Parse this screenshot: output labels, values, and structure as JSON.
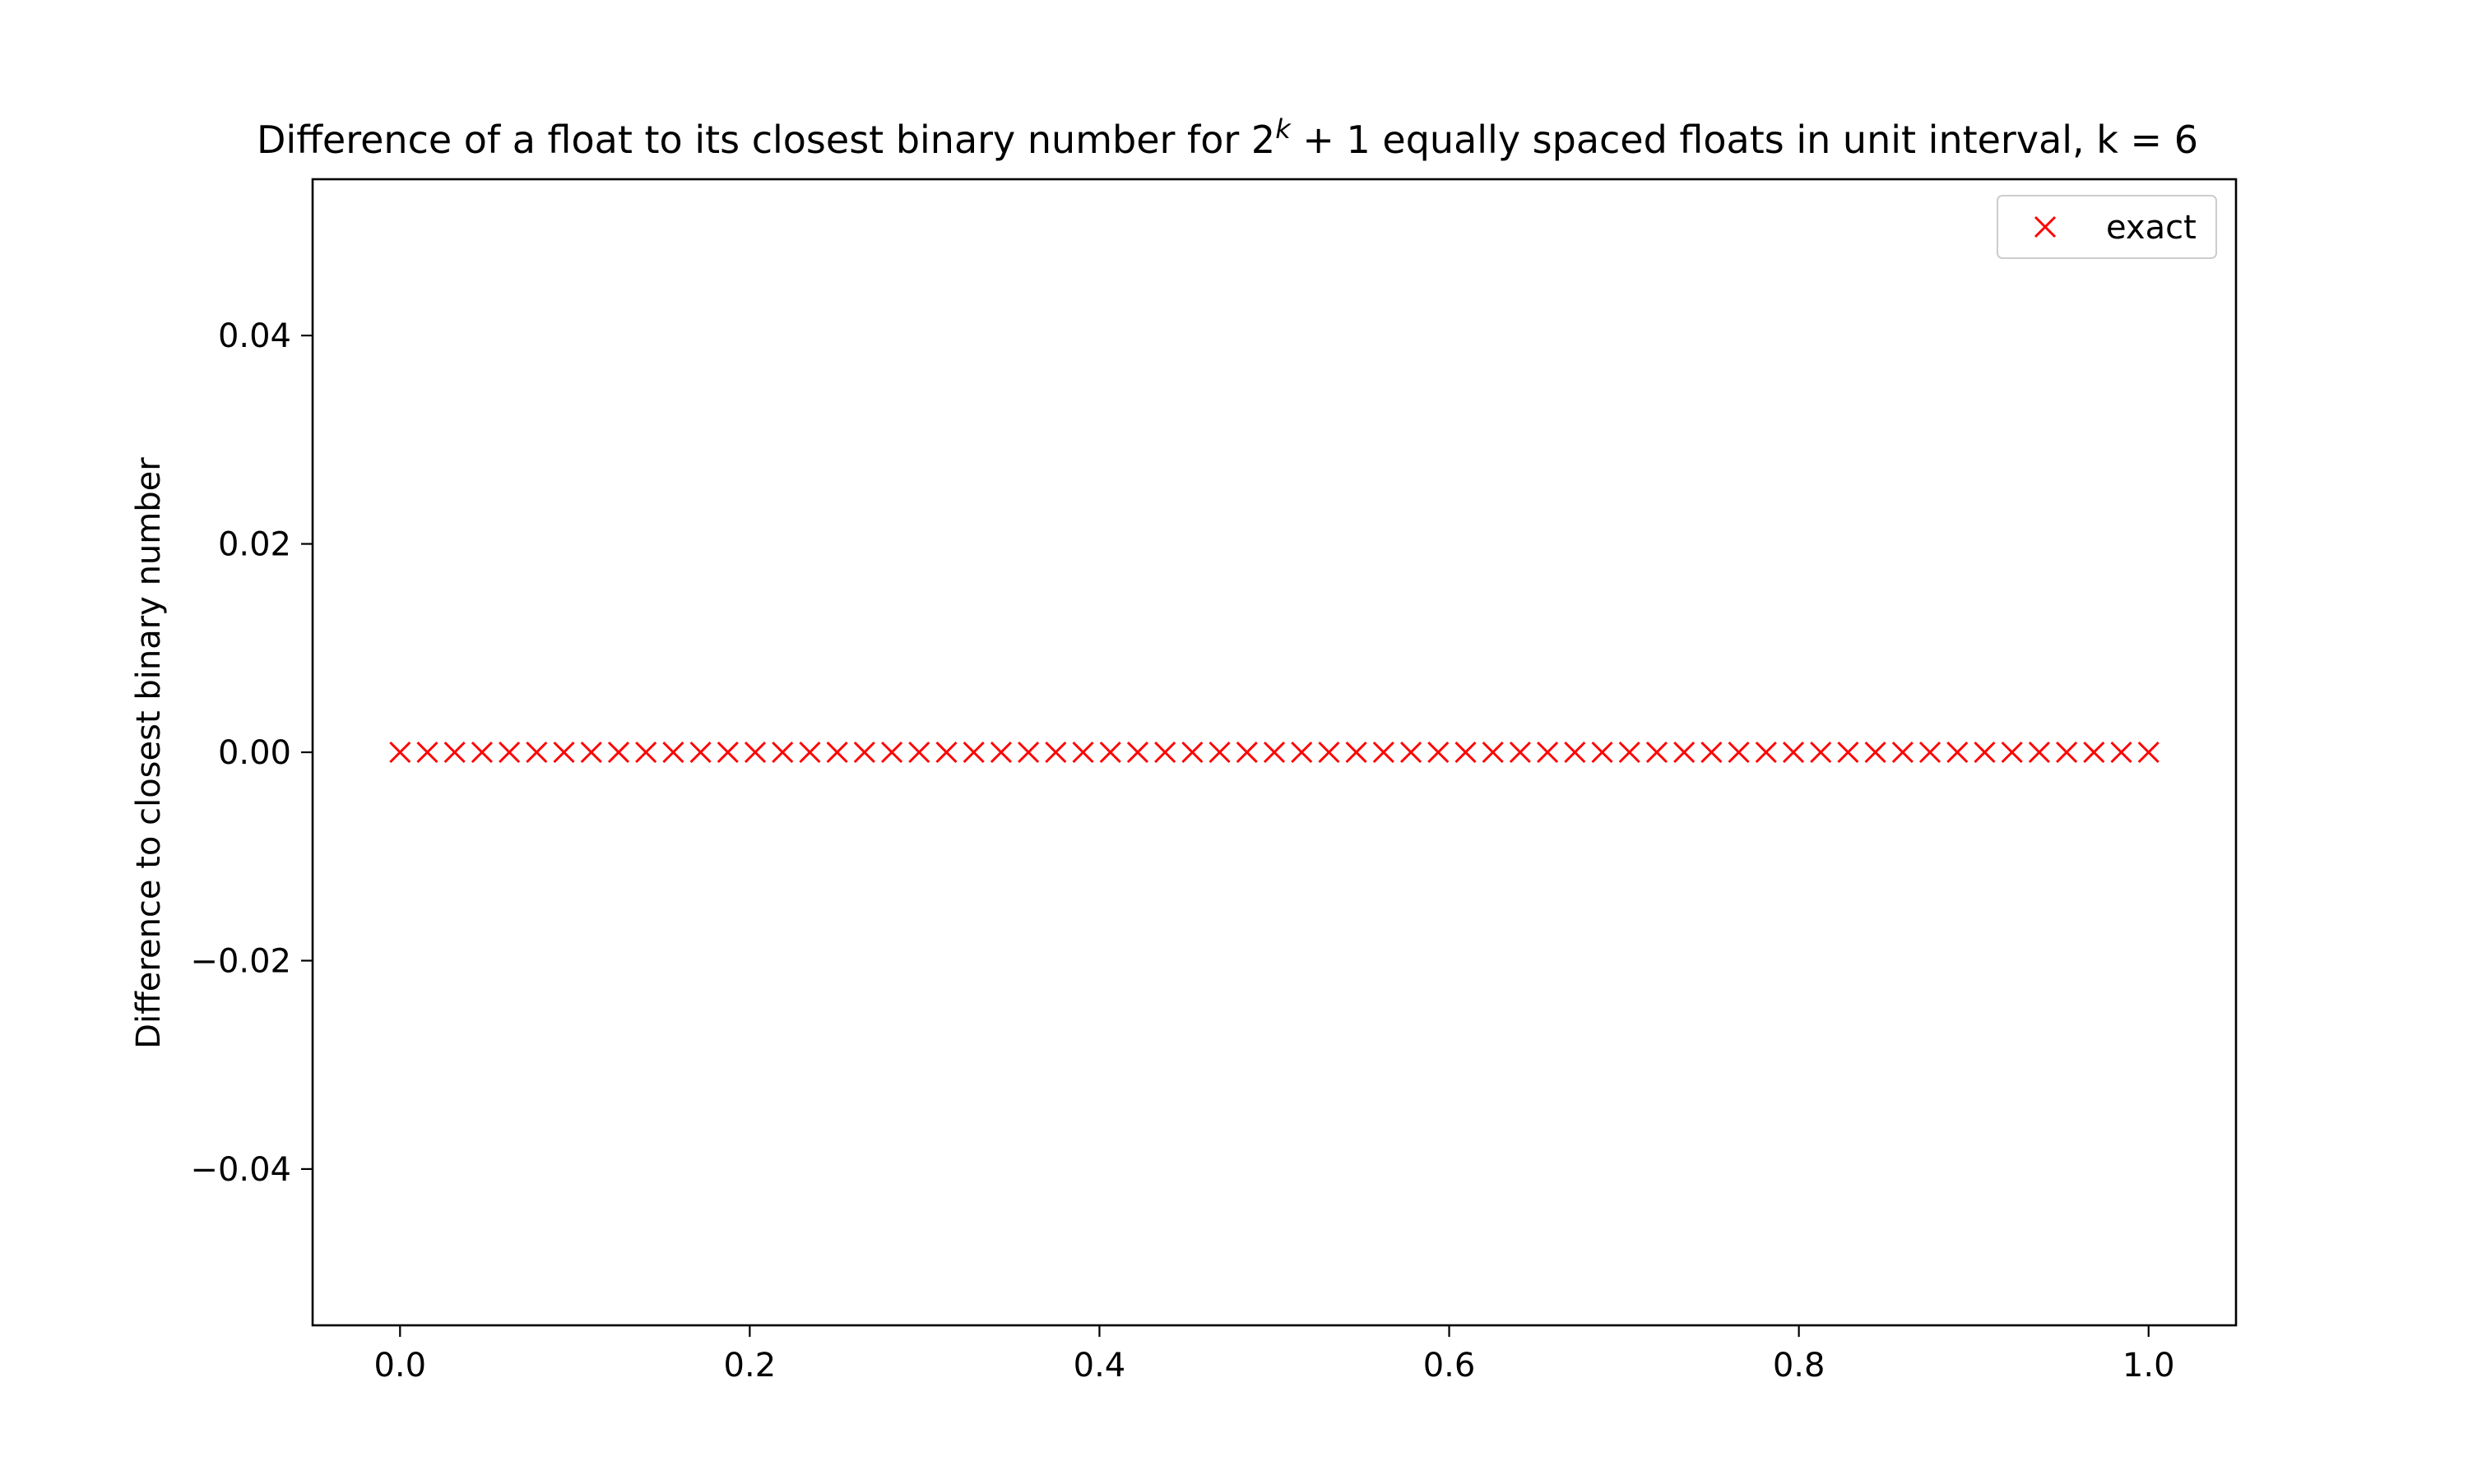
{
  "chart_data": {
    "type": "scatter",
    "title_prefix": "Difference of a float to its closest binary number for 2",
    "title_exponent": "k",
    "title_suffix": " + 1 equally spaced floats in unit interval, k = 6",
    "xlabel": "",
    "ylabel": "Difference to closest binary number",
    "xlim": [
      -0.05,
      1.05
    ],
    "ylim": [
      -0.055,
      0.055
    ],
    "x_ticks": [
      0.0,
      0.2,
      0.4,
      0.6,
      0.8,
      1.0
    ],
    "x_tick_labels": [
      "0.0",
      "0.2",
      "0.4",
      "0.6",
      "0.8",
      "1.0"
    ],
    "y_ticks": [
      0.04,
      0.02,
      0.0,
      -0.02,
      -0.04
    ],
    "y_tick_labels": [
      "0.04",
      "0.02",
      "0.00",
      "−0.02",
      "−0.04"
    ],
    "grid": false,
    "legend_position": "top-right",
    "series": [
      {
        "name": "exact",
        "marker": "x",
        "color": "#ff0000",
        "x": [
          0.0,
          0.015625,
          0.03125,
          0.046875,
          0.0625,
          0.078125,
          0.09375,
          0.109375,
          0.125,
          0.140625,
          0.15625,
          0.171875,
          0.1875,
          0.203125,
          0.21875,
          0.234375,
          0.25,
          0.265625,
          0.28125,
          0.296875,
          0.3125,
          0.328125,
          0.34375,
          0.359375,
          0.375,
          0.390625,
          0.40625,
          0.421875,
          0.4375,
          0.453125,
          0.46875,
          0.484375,
          0.5,
          0.515625,
          0.53125,
          0.546875,
          0.5625,
          0.578125,
          0.59375,
          0.609375,
          0.625,
          0.640625,
          0.65625,
          0.671875,
          0.6875,
          0.703125,
          0.71875,
          0.734375,
          0.75,
          0.765625,
          0.78125,
          0.796875,
          0.8125,
          0.828125,
          0.84375,
          0.859375,
          0.875,
          0.890625,
          0.90625,
          0.921875,
          0.9375,
          0.953125,
          0.96875,
          0.984375,
          1.0
        ],
        "y": [
          0,
          0,
          0,
          0,
          0,
          0,
          0,
          0,
          0,
          0,
          0,
          0,
          0,
          0,
          0,
          0,
          0,
          0,
          0,
          0,
          0,
          0,
          0,
          0,
          0,
          0,
          0,
          0,
          0,
          0,
          0,
          0,
          0,
          0,
          0,
          0,
          0,
          0,
          0,
          0,
          0,
          0,
          0,
          0,
          0,
          0,
          0,
          0,
          0,
          0,
          0,
          0,
          0,
          0,
          0,
          0,
          0,
          0,
          0,
          0,
          0,
          0,
          0,
          0,
          0
        ]
      }
    ]
  }
}
